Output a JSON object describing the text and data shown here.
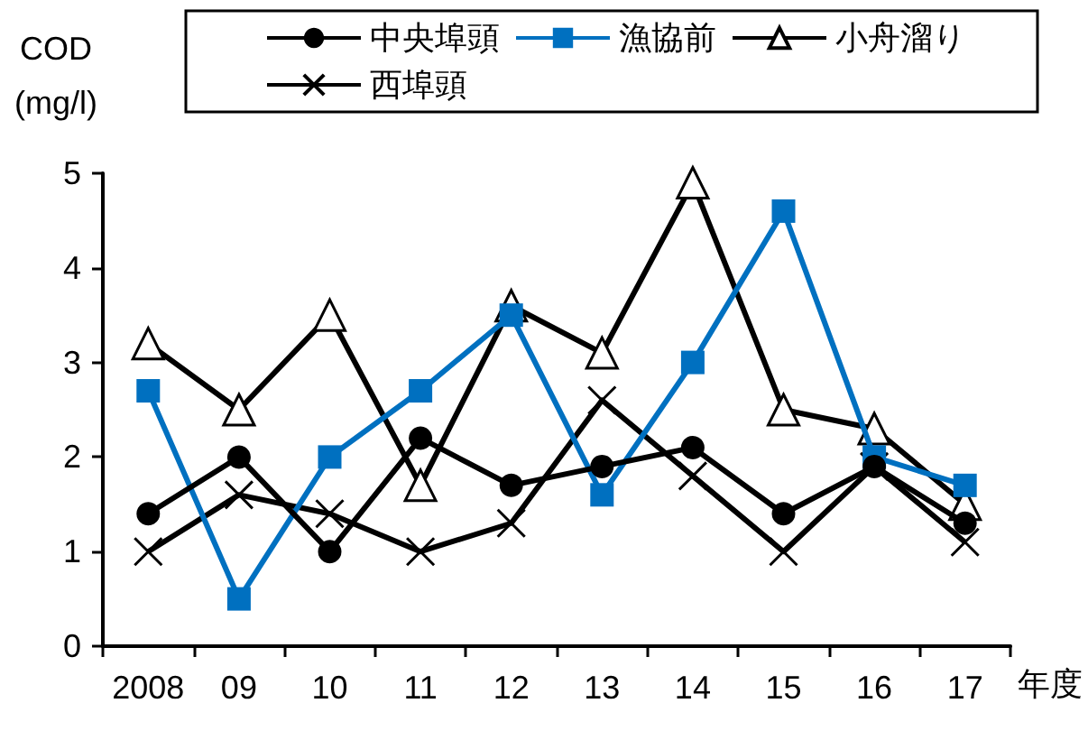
{
  "chart_data": {
    "type": "line",
    "ylabel": "COD\n(mg/l)",
    "xlabel": "年度",
    "categories": [
      "2008",
      "09",
      "10",
      "11",
      "12",
      "13",
      "14",
      "15",
      "16",
      "17"
    ],
    "series": [
      {
        "name": "中央埠頭",
        "color": "#000000",
        "marker": "circle",
        "values": [
          1.4,
          2.0,
          1.0,
          2.2,
          1.7,
          1.9,
          2.1,
          1.4,
          1.9,
          1.3
        ]
      },
      {
        "name": "漁協前",
        "color": "#0070c0",
        "marker": "square",
        "values": [
          2.7,
          0.5,
          2.0,
          2.7,
          3.5,
          1.6,
          3.0,
          4.6,
          2.0,
          1.7
        ]
      },
      {
        "name": "小舟溜り",
        "color": "#000000",
        "marker": "triangle",
        "values": [
          3.2,
          2.5,
          3.5,
          1.7,
          3.6,
          3.1,
          4.9,
          2.5,
          2.3,
          1.5
        ]
      },
      {
        "name": "西埠頭",
        "color": "#000000",
        "marker": "cross",
        "values": [
          1.0,
          1.6,
          1.4,
          1.0,
          1.3,
          2.6,
          1.8,
          1.0,
          1.9,
          1.1
        ]
      }
    ],
    "ylim": [
      0,
      5
    ],
    "yticks": [
      0,
      1,
      2,
      3,
      4,
      5
    ],
    "grid": false,
    "legend": "top",
    "line_style": "solid"
  }
}
